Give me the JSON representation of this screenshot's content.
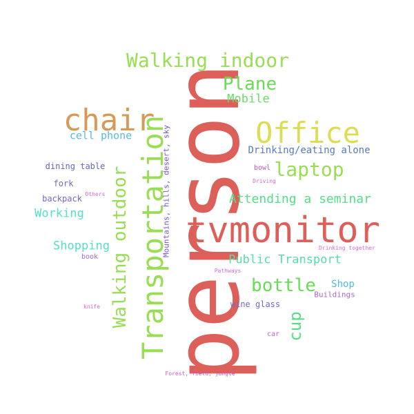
{
  "words": [
    {
      "text": "person",
      "color": "#dd5f5a",
      "rotated": true
    },
    {
      "text": "tvmonitor",
      "color": "#dd5f5a",
      "rotated": false
    },
    {
      "text": "Transportation",
      "color": "#99dd55",
      "rotated": true
    },
    {
      "text": "Office",
      "color": "#dddd55",
      "rotated": false
    },
    {
      "text": "chair",
      "color": "#d59a55",
      "rotated": false
    },
    {
      "text": "Walking outdoor",
      "color": "#99dd55",
      "rotated": true
    },
    {
      "text": "Walking indoor",
      "color": "#99dd55",
      "rotated": false
    },
    {
      "text": "Plane",
      "color": "#66dd55",
      "rotated": false
    },
    {
      "text": "Mobile",
      "color": "#66dd66",
      "rotated": false
    },
    {
      "text": "laptop",
      "color": "#99dd55",
      "rotated": false
    },
    {
      "text": "bottle",
      "color": "#66dd55",
      "rotated": false
    },
    {
      "text": "cup",
      "color": "#55dd88",
      "rotated": true
    },
    {
      "text": "Attending a seminar",
      "color": "#55dd88",
      "rotated": false
    },
    {
      "text": "Public Transport",
      "color": "#55ddaa",
      "rotated": false
    },
    {
      "text": "Drinking/eating alone",
      "color": "#5577cc",
      "rotated": false
    },
    {
      "text": "cell phone",
      "color": "#55bbdd",
      "rotated": false
    },
    {
      "text": "Working",
      "color": "#55ddcc",
      "rotated": false
    },
    {
      "text": "Shopping",
      "color": "#55ddcc",
      "rotated": false
    },
    {
      "text": "Shop",
      "color": "#55bbdd",
      "rotated": false
    },
    {
      "text": "Mountains, hills, desert, sky",
      "color": "#7755cc",
      "rotated": true
    },
    {
      "text": "dining table",
      "color": "#6666bb",
      "rotated": false
    },
    {
      "text": "fork",
      "color": "#7766cc",
      "rotated": false
    },
    {
      "text": "backpack",
      "color": "#7766cc",
      "rotated": false
    },
    {
      "text": "wine glass",
      "color": "#7766cc",
      "rotated": false
    },
    {
      "text": "Buildings",
      "color": "#aa66cc",
      "rotated": false
    },
    {
      "text": "book",
      "color": "#aa66cc",
      "rotated": false
    },
    {
      "text": "bowl",
      "color": "#bb55cc",
      "rotated": false
    },
    {
      "text": "car",
      "color": "#bb66cc",
      "rotated": false
    },
    {
      "text": "Driving",
      "color": "#cc66cc",
      "rotated": false
    },
    {
      "text": "Others",
      "color": "#dd66cc",
      "rotated": false
    },
    {
      "text": "Drinking together",
      "color": "#dd66cc",
      "rotated": false
    },
    {
      "text": "Pathways",
      "color": "#cc66dd",
      "rotated": false
    },
    {
      "text": "knife",
      "color": "#dd66cc",
      "rotated": false
    },
    {
      "text": "Forest, field, jungle",
      "color": "#cc55cc",
      "rotated": false
    }
  ]
}
